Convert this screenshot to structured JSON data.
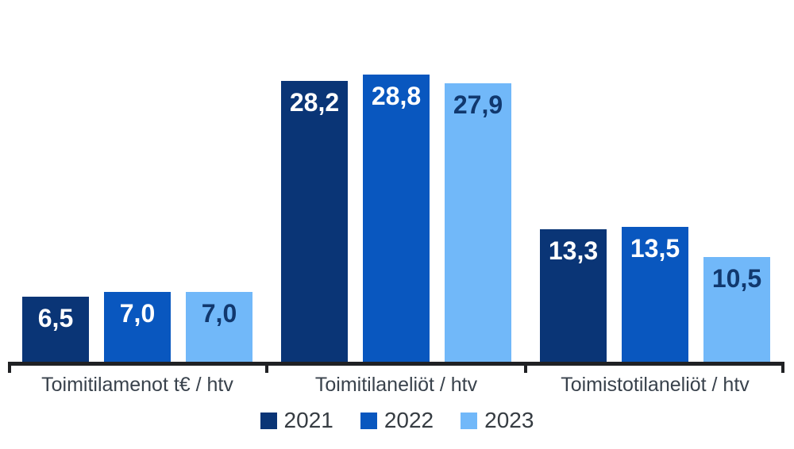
{
  "chart_data": {
    "type": "bar",
    "title": "",
    "xlabel": "",
    "ylabel": "",
    "categories": [
      "Toimitilamenot t€ / htv",
      "Toimitilaneliöt / htv",
      "Toimistotilaneliöt / htv"
    ],
    "series": [
      {
        "name": "2021",
        "values": [
          6.5,
          28.2,
          13.3
        ],
        "labels": [
          "6,5",
          "28,2",
          "13,3"
        ],
        "color": "#0A3576",
        "label_color": "#FFFFFF"
      },
      {
        "name": "2022",
        "values": [
          7.0,
          28.8,
          13.5
        ],
        "labels": [
          "7,0",
          "28,8",
          "13,5"
        ],
        "color": "#0957BF",
        "label_color": "#FFFFFF"
      },
      {
        "name": "2023",
        "values": [
          7.0,
          27.9,
          10.5
        ],
        "labels": [
          "7,0",
          "27,9",
          "10,5"
        ],
        "color": "#71B8F9",
        "label_color": "#11386E"
      }
    ],
    "ylim": [
      0,
      30
    ],
    "grid": false,
    "legend_position": "bottom",
    "value_label_position": "inside-top",
    "value_label_format": "decimal-comma",
    "axis_color": "#202124",
    "category_label_color": "#39424C",
    "legend_text_color": "#363C42",
    "background_color": "#FFFFFF"
  }
}
